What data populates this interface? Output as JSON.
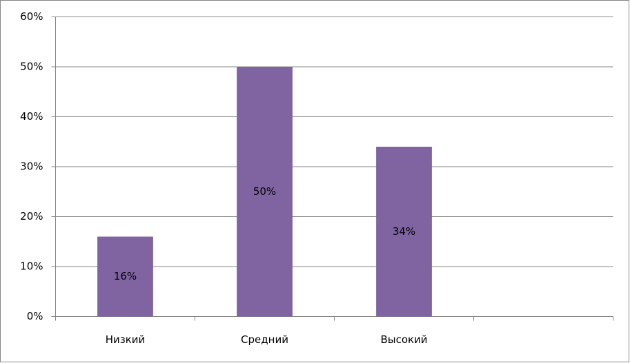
{
  "chart_data": {
    "type": "bar",
    "categories": [
      "Низкий",
      "Средний",
      "Высокий",
      null
    ],
    "values": [
      16,
      50,
      34,
      null
    ],
    "value_labels": [
      "16%",
      "50%",
      "34%",
      null
    ],
    "color": "#8064a2",
    "ylim": [
      0,
      60
    ],
    "yticks": [
      {
        "value": 0,
        "label": "0%"
      },
      {
        "value": 10,
        "label": "10%"
      },
      {
        "value": 20,
        "label": "20%"
      },
      {
        "value": 30,
        "label": "30%"
      },
      {
        "value": 40,
        "label": "40%"
      },
      {
        "value": 50,
        "label": "50%"
      },
      {
        "value": 60,
        "label": "60%"
      }
    ],
    "grid": true
  }
}
